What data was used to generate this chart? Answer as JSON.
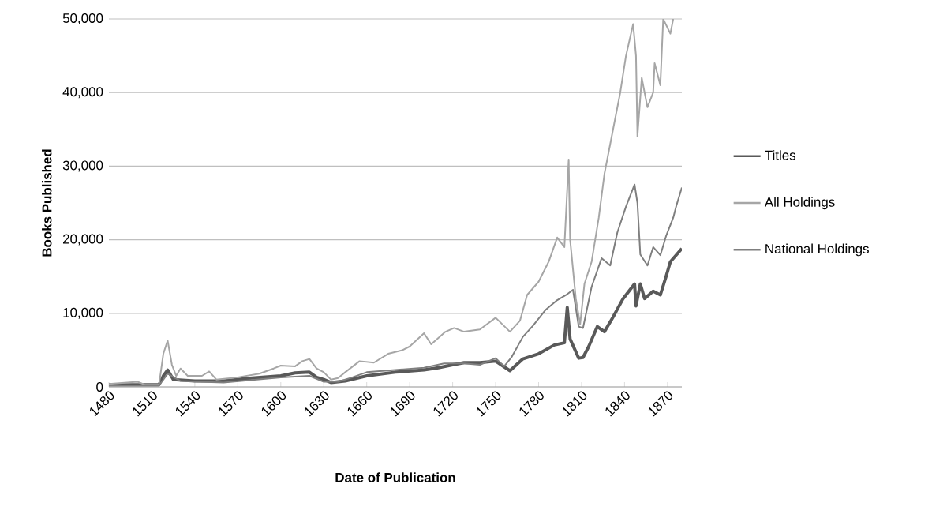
{
  "chart_data": {
    "type": "line",
    "xlabel": "Date of Publication",
    "ylabel": "Books Published",
    "xlim": [
      1480,
      1880
    ],
    "xticks": [
      1480,
      1510,
      1540,
      1570,
      1600,
      1630,
      1660,
      1690,
      1720,
      1750,
      1780,
      1810,
      1840,
      1870
    ],
    "ylim": [
      0,
      50000
    ],
    "yticks": [
      0,
      {
        "value": 10000,
        "label": "10,000"
      },
      {
        "value": 20000,
        "label": "20,000"
      },
      {
        "value": 30000,
        "label": "30,000"
      },
      {
        "value": 40000,
        "label": "40,000"
      },
      {
        "value": 50000,
        "label": "50,000"
      }
    ],
    "grid": "y",
    "legend": "right",
    "marker": "none",
    "line_style": "solid",
    "series": [
      {
        "name": "Titles",
        "color": "#595959",
        "x": [
          1480,
          1515,
          1518,
          1521,
          1525,
          1540,
          1560,
          1580,
          1600,
          1610,
          1620,
          1625,
          1630,
          1635,
          1645,
          1660,
          1680,
          1700,
          1710,
          1720,
          1728,
          1739,
          1750,
          1760,
          1769,
          1780,
          1791,
          1798,
          1800,
          1802,
          1808,
          1811,
          1815,
          1821,
          1826,
          1832,
          1839,
          1847,
          1848,
          1851,
          1854,
          1860,
          1865,
          1869,
          1872,
          1880
        ],
        "values": [
          300,
          300,
          1500,
          2300,
          1000,
          800,
          800,
          1200,
          1500,
          1900,
          2000,
          1300,
          1000,
          600,
          800,
          1500,
          2000,
          2300,
          2600,
          3000,
          3300,
          3300,
          3500,
          2200,
          3800,
          4500,
          5700,
          6000,
          10800,
          6500,
          3900,
          4000,
          5500,
          8200,
          7500,
          9500,
          12000,
          14000,
          11000,
          14000,
          12000,
          13000,
          12500,
          15000,
          17000,
          18800
        ]
      },
      {
        "name": "All Holdings",
        "color": "#a6a6a6",
        "x": [
          1480,
          1500,
          1505,
          1515,
          1518,
          1521,
          1524,
          1527,
          1530,
          1535,
          1545,
          1550,
          1555,
          1570,
          1585,
          1595,
          1600,
          1610,
          1615,
          1620,
          1625,
          1630,
          1635,
          1640,
          1645,
          1655,
          1665,
          1675,
          1685,
          1690,
          1700,
          1705,
          1715,
          1721,
          1728,
          1739,
          1750,
          1760,
          1767,
          1772,
          1780,
          1787,
          1793,
          1798,
          1801,
          1802,
          1806,
          1809,
          1812,
          1817,
          1822,
          1826,
          1832,
          1837,
          1841,
          1846,
          1848,
          1849,
          1852,
          1856,
          1860,
          1861,
          1865,
          1867,
          1872,
          1874
        ],
        "values": [
          400,
          700,
          300,
          300,
          4500,
          6300,
          3000,
          1500,
          2500,
          1500,
          1500,
          2100,
          1000,
          1300,
          1800,
          2500,
          2900,
          2800,
          3500,
          3800,
          2500,
          2000,
          1000,
          1200,
          2000,
          3500,
          3300,
          4500,
          5000,
          5500,
          7300,
          5800,
          7500,
          8000,
          7500,
          7800,
          9400,
          7500,
          9000,
          12500,
          14300,
          17000,
          20300,
          19000,
          30900,
          20000,
          12000,
          8500,
          14000,
          17000,
          23000,
          29000,
          35000,
          40000,
          45000,
          49300,
          45000,
          34000,
          42000,
          38000,
          40000,
          44000,
          41000,
          50000,
          48000,
          50000
        ]
      },
      {
        "name": "National Holdings",
        "color": "#7f7f7f",
        "x": [
          1480,
          1515,
          1520,
          1521,
          1530,
          1560,
          1600,
          1620,
          1630,
          1640,
          1650,
          1660,
          1680,
          1700,
          1714,
          1728,
          1739,
          1750,
          1756,
          1761,
          1769,
          1776,
          1785,
          1793,
          1800,
          1804,
          1808,
          1811,
          1817,
          1824,
          1830,
          1835,
          1841,
          1847,
          1849,
          1851,
          1856,
          1860,
          1865,
          1869,
          1874,
          1876,
          1880
        ],
        "values": [
          200,
          200,
          1500,
          1800,
          800,
          600,
          1300,
          1500,
          700,
          700,
          1300,
          2000,
          2300,
          2600,
          3200,
          3200,
          3000,
          3900,
          2800,
          4000,
          6800,
          8300,
          10500,
          11800,
          12600,
          13200,
          8200,
          8000,
          13600,
          17500,
          16500,
          21000,
          24500,
          27500,
          25000,
          18000,
          16500,
          19000,
          17900,
          20500,
          23000,
          24500,
          27100
        ]
      }
    ]
  }
}
